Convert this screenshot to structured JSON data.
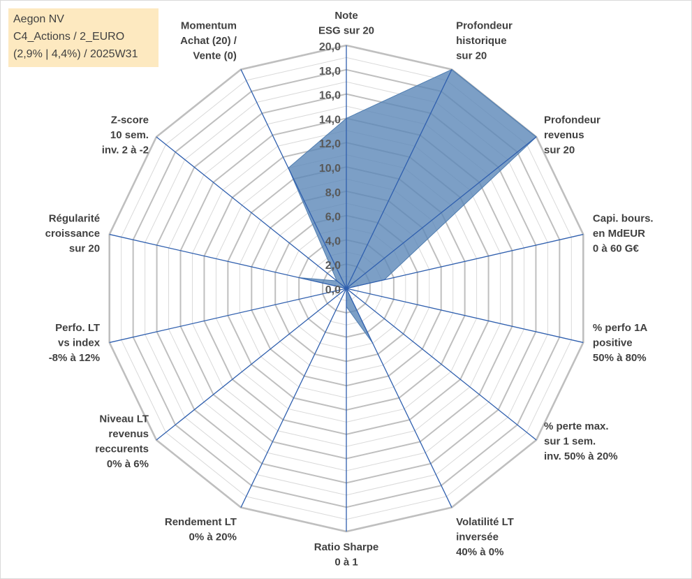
{
  "info_box": {
    "line1": "Aegon NV",
    "line2": "C4_Actions / 2_EURO",
    "line3": "(2,9% | 4,4%) / 2025W31"
  },
  "colors": {
    "fill": "#5b87b8",
    "spoke": "#2f5fae",
    "grid_major": "#bfbfbf",
    "grid_minor": "#d9d9d9"
  },
  "chart_data": {
    "type": "radar",
    "title": "",
    "rmin": 0,
    "rmax": 20,
    "major_step": 2,
    "minor_step": 1,
    "tick_labels": [
      "0,0",
      "2,0",
      "4,0",
      "6,0",
      "8,0",
      "10,0",
      "12,0",
      "14,0",
      "16,0",
      "18,0",
      "20,0"
    ],
    "categories": [
      [
        "Note",
        "ESG sur 20"
      ],
      [
        "Profondeur",
        "historique",
        "sur 20"
      ],
      [
        "Profondeur",
        "revenus",
        "sur 20"
      ],
      [
        "Capi. bours.",
        "en MdEUR",
        "0 à 60 G€"
      ],
      [
        "% perfo 1A",
        "positive",
        "50% à 80%"
      ],
      [
        "% perte max.",
        "sur 1 sem.",
        "inv. 50% à 20%"
      ],
      [
        "Volatilité LT",
        "inversée",
        "40% à 0%"
      ],
      [
        "Ratio Sharpe",
        "0 à 1"
      ],
      [
        "Rendement LT",
        "0% à 20%"
      ],
      [
        "Niveau LT",
        "revenus",
        "reccurents",
        "0% à 6%"
      ],
      [
        "Perfo. LT",
        "vs index",
        "-8% à 12%"
      ],
      [
        "Régularité",
        "croissance",
        "sur 20"
      ],
      [
        "Z-score",
        "10 sem.",
        "inv. 2 à -2"
      ],
      [
        "Momentum",
        "Achat (20) /",
        "Vente (0)"
      ]
    ],
    "values": [
      14.0,
      20.0,
      20.0,
      3.2,
      0.0,
      0.0,
      5.0,
      1.5,
      0.0,
      0.0,
      0.0,
      4.0,
      1.0,
      11.0
    ],
    "grid": true,
    "legend": "none"
  }
}
